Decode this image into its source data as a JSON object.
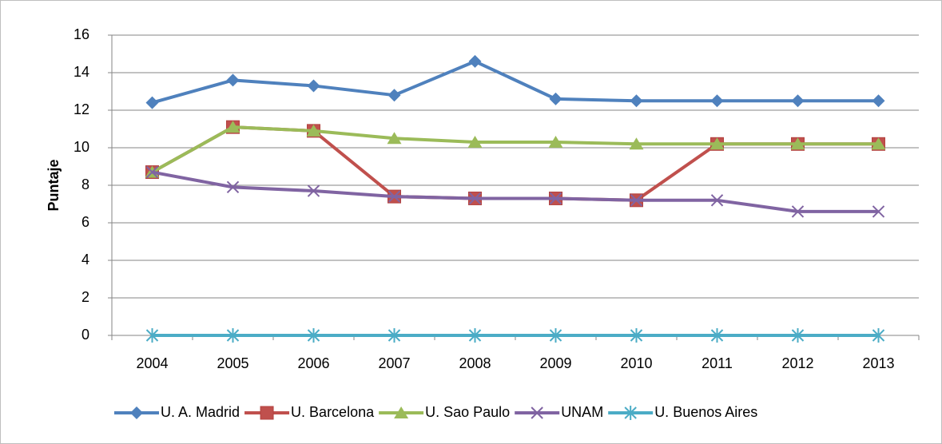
{
  "chart_data": {
    "type": "line",
    "y_label": "Puntaje",
    "categories": [
      "2004",
      "2005",
      "2006",
      "2007",
      "2008",
      "2009",
      "2010",
      "2011",
      "2012",
      "2013"
    ],
    "series": [
      {
        "name": "U. A. Madrid",
        "color": "#4f81bd",
        "marker": "diamond",
        "values": [
          12.4,
          13.6,
          13.3,
          12.8,
          14.6,
          12.6,
          12.5,
          12.5,
          12.5,
          12.5
        ]
      },
      {
        "name": "U. Barcelona",
        "color": "#c0504d",
        "marker": "square",
        "values": [
          8.7,
          11.1,
          10.9,
          7.4,
          7.3,
          7.3,
          7.2,
          10.2,
          10.2,
          10.2
        ]
      },
      {
        "name": "U. Sao Paulo",
        "color": "#9bbb59",
        "marker": "triangle",
        "values": [
          8.7,
          11.1,
          10.9,
          10.5,
          10.3,
          10.3,
          10.2,
          10.2,
          10.2,
          10.2
        ]
      },
      {
        "name": "UNAM",
        "color": "#8064a2",
        "marker": "x",
        "values": [
          8.7,
          7.9,
          7.7,
          7.4,
          7.3,
          7.3,
          7.2,
          7.2,
          6.6,
          6.6
        ]
      },
      {
        "name": "U. Buenos Aires",
        "color": "#4bacc6",
        "marker": "star",
        "values": [
          0,
          0,
          0,
          0,
          0,
          0,
          0,
          0,
          0,
          0
        ]
      }
    ],
    "ylim": [
      0,
      16
    ],
    "yticks": [
      0,
      2,
      4,
      6,
      8,
      10,
      12,
      14,
      16
    ],
    "grid": true,
    "legend": "bottom"
  }
}
